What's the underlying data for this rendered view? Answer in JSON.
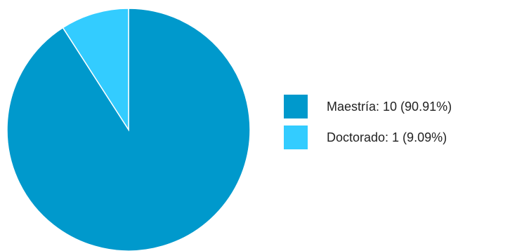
{
  "chart_data": {
    "type": "pie",
    "title": "",
    "series": [
      {
        "name": "",
        "slices": [
          {
            "label": "Maestría: 10 (90.91%)",
            "value": 10,
            "color": "#0099cc"
          },
          {
            "label": "Doctorado: 1 (9.09%)",
            "value": 1,
            "color": "#33ccff"
          }
        ]
      }
    ],
    "legend_position": "right"
  }
}
